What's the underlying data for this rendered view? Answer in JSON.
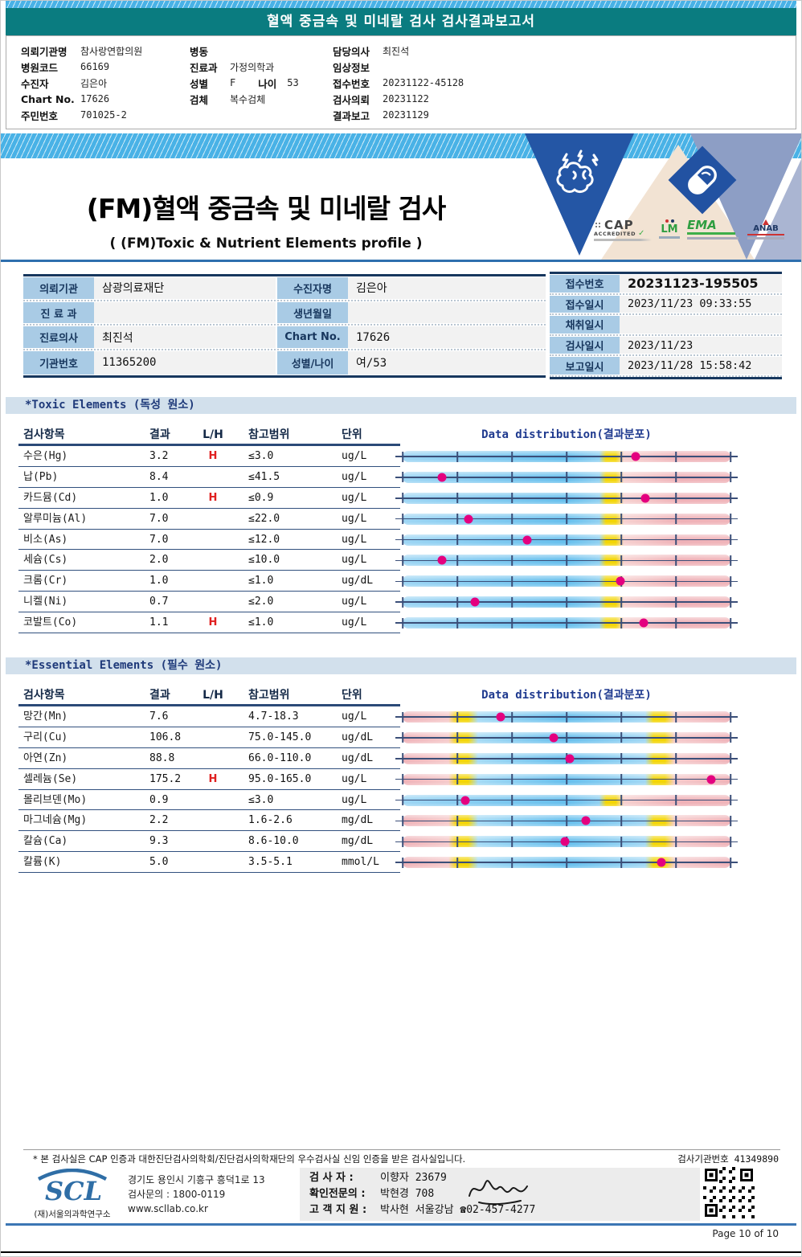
{
  "top_banner": {
    "title": "혈액 중금속 및 미네랄 검사 검사결과보고서"
  },
  "patient_header": {
    "col1": [
      {
        "label": "의뢰기관명",
        "value": "참사랑연합의원"
      },
      {
        "label": "병원코드",
        "value": "66169"
      },
      {
        "label": "수진자",
        "value": "김은아"
      },
      {
        "label": "Chart No.",
        "value": "17626"
      },
      {
        "label": "주민번호",
        "value": "701025-2"
      }
    ],
    "col2": [
      {
        "label": "병동",
        "value": ""
      },
      {
        "label": "진료과",
        "value": "가정의학과"
      },
      {
        "label": "성별",
        "value": "F",
        "label2": "나이",
        "value2": "53"
      },
      {
        "label": "검체",
        "value": "복수검체"
      }
    ],
    "col3": [
      {
        "label": "담당의사",
        "value": "최진석"
      },
      {
        "label": "임상정보",
        "value": ""
      },
      {
        "label": "접수번호",
        "value": "20231122-45128"
      },
      {
        "label": "검사의뢰",
        "value": "20231122"
      },
      {
        "label": "결과보고",
        "value": "20231129"
      }
    ]
  },
  "title_block": {
    "main": "(FM)혈액 중금속 및 미네랄 검사",
    "sub": "( (FM)Toxic & Nutrient Elements profile )"
  },
  "accreditation_logos": {
    "cap": "CAP",
    "cap_sub": "ACCREDITED",
    "cap_check": "✓",
    "lmi": "LM",
    "ema": "EMA",
    "anab": "ANAB"
  },
  "info_table": {
    "left_rows": [
      {
        "l1": "의뢰기관",
        "v1": "삼광의료재단",
        "l2": "수진자명",
        "v2": "김은아"
      },
      {
        "l1": "진 료 과",
        "v1": "",
        "l2": "생년월일",
        "v2": ""
      },
      {
        "l1": "진료의사",
        "v1": "최진석",
        "l2": "Chart No.",
        "v2": "17626"
      },
      {
        "l1": "기관번호",
        "v1": "11365200",
        "l2": "성별/나이",
        "v2": "여/53"
      }
    ],
    "right_rows": [
      {
        "label": "접수번호",
        "value": "20231123-195505"
      },
      {
        "label": "접수일시",
        "value": "2023/11/23  09:33:55"
      },
      {
        "label": "채취일시",
        "value": ""
      },
      {
        "label": "검사일시",
        "value": "2023/11/23"
      },
      {
        "label": "보고일시",
        "value": "2023/11/28  15:58:42"
      }
    ]
  },
  "table_columns": {
    "item": "검사항목",
    "result": "결과",
    "lh": "L/H",
    "range": "참고범위",
    "unit": "단위",
    "distribution": "Data distribution(결과분포)"
  },
  "toxic_section": {
    "title": "*Toxic Elements (독성 원소)",
    "rows": [
      {
        "name": "수은(Hg)",
        "result": "3.2",
        "lh": "H",
        "range": "≤3.0",
        "unit": "ug/L",
        "dot": 0.71,
        "bar": "upper"
      },
      {
        "name": "납(Pb)",
        "result": "8.4",
        "lh": "",
        "range": "≤41.5",
        "unit": "ug/L",
        "dot": 0.12,
        "bar": "upper"
      },
      {
        "name": "카드뮴(Cd)",
        "result": "1.0",
        "lh": "H",
        "range": "≤0.9",
        "unit": "ug/L",
        "dot": 0.74,
        "bar": "upper"
      },
      {
        "name": "알루미늄(Al)",
        "result": "7.0",
        "lh": "",
        "range": "≤22.0",
        "unit": "ug/L",
        "dot": 0.2,
        "bar": "upper"
      },
      {
        "name": "비소(As)",
        "result": "7.0",
        "lh": "",
        "range": "≤12.0",
        "unit": "ug/L",
        "dot": 0.38,
        "bar": "upper"
      },
      {
        "name": "세슘(Cs)",
        "result": "2.0",
        "lh": "",
        "range": "≤10.0",
        "unit": "ug/L",
        "dot": 0.12,
        "bar": "upper"
      },
      {
        "name": "크롬(Cr)",
        "result": "1.0",
        "lh": "",
        "range": "≤1.0",
        "unit": "ug/dL",
        "dot": 0.665,
        "bar": "upper"
      },
      {
        "name": "니켈(Ni)",
        "result": "0.7",
        "lh": "",
        "range": "≤2.0",
        "unit": "ug/L",
        "dot": 0.22,
        "bar": "upper"
      },
      {
        "name": "코발트(Co)",
        "result": "1.1",
        "lh": "H",
        "range": "≤1.0",
        "unit": "ug/L",
        "dot": 0.735,
        "bar": "upper"
      }
    ]
  },
  "essential_section": {
    "title": "*Essential Elements (필수 원소)",
    "rows": [
      {
        "name": "망간(Mn)",
        "result": "7.6",
        "lh": "",
        "range": "4.7-18.3",
        "unit": "ug/L",
        "dot": 0.3,
        "bar": "range"
      },
      {
        "name": "구리(Cu)",
        "result": "106.8",
        "lh": "",
        "range": "75.0-145.0",
        "unit": "ug/dL",
        "dot": 0.46,
        "bar": "range"
      },
      {
        "name": "아연(Zn)",
        "result": "88.8",
        "lh": "",
        "range": "66.0-110.0",
        "unit": "ug/dL",
        "dot": 0.51,
        "bar": "range"
      },
      {
        "name": "셀레늄(Se)",
        "result": "175.2",
        "lh": "H",
        "range": "95.0-165.0",
        "unit": "ug/L",
        "dot": 0.94,
        "bar": "range"
      },
      {
        "name": "몰리브덴(Mo)",
        "result": "0.9",
        "lh": "",
        "range": "≤3.0",
        "unit": "ug/L",
        "dot": 0.19,
        "bar": "upper"
      },
      {
        "name": "마그네슘(Mg)",
        "result": "2.2",
        "lh": "",
        "range": "1.6-2.6",
        "unit": "mg/dL",
        "dot": 0.56,
        "bar": "range"
      },
      {
        "name": "칼슘(Ca)",
        "result": "9.3",
        "lh": "",
        "range": "8.6-10.0",
        "unit": "mg/dL",
        "dot": 0.495,
        "bar": "range"
      },
      {
        "name": "칼륨(K)",
        "result": "5.0",
        "lh": "",
        "range": "3.5-5.1",
        "unit": "mmol/L",
        "dot": 0.79,
        "bar": "range"
      }
    ]
  },
  "footer": {
    "note": "* 본 검사실은 CAP 인증과 대한진단검사의학회/진단검사의학재단의 우수검사실 신임 인증을 받은 검사실입니다.",
    "org_no_label": "검사기관번호  41349890",
    "scl_logo": "SCL",
    "scl_org": "(재)서울의과학연구소",
    "address": "경기도 용인시 기흥구 흥덕1로 13",
    "phone": "검사문의 : 1800-0119",
    "website": "www.scllab.co.kr",
    "examiner_label": "검 사 자 :",
    "examiner": "이향자 23679",
    "confirmer_label": "확인전문의 :",
    "confirmer": "박현경 708",
    "support_label": "고 객 지 원 :",
    "support": "박사현 서울강남 ☎02-457-4277",
    "page_label": "Page 10 of 10"
  },
  "colors": {
    "banner_teal": "#0a7c80",
    "label_blue": "#a9cbe5",
    "navy": "#17375e",
    "bar_blue": "#66bfed",
    "bar_yellow": "#f3d504",
    "bar_pink": "#efb2b8",
    "dot_magenta": "#e4007f",
    "high_flag_red": "#e02020",
    "stripe_blue": "#49b2e6"
  }
}
